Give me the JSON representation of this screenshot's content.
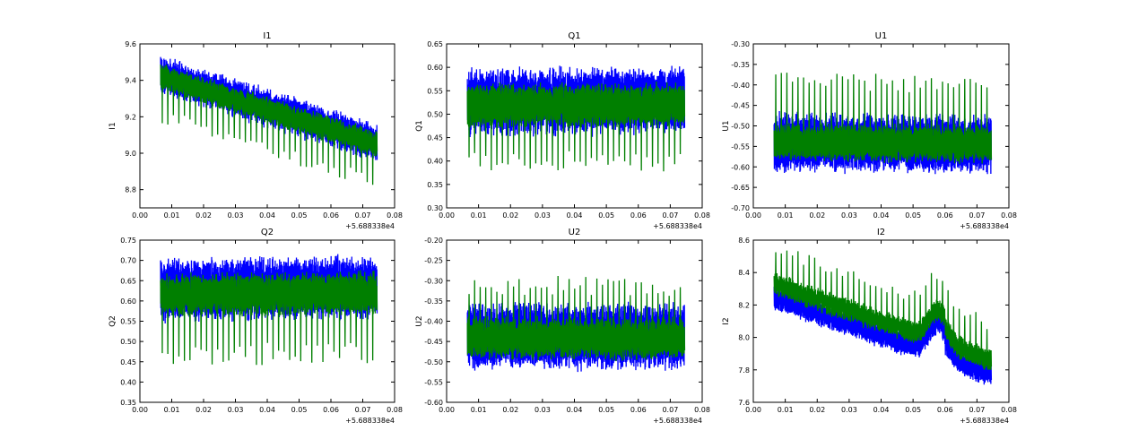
{
  "chart_data": [
    {
      "type": "line",
      "title": "I1",
      "xlabel": "",
      "ylabel": "I1",
      "x_offset_label": "+5.688338e4",
      "xlim": [
        0.0,
        0.08
      ],
      "ylim": [
        8.7,
        9.6
      ],
      "xticks": [
        "0.00",
        "0.01",
        "0.02",
        "0.03",
        "0.04",
        "0.05",
        "0.06",
        "0.07",
        "0.08"
      ],
      "yticks": [
        "8.8",
        "9.0",
        "9.2",
        "9.4",
        "9.6"
      ],
      "x_range": [
        0.0065,
        0.0745
      ],
      "series": [
        {
          "name": "blue",
          "color": "#0000ff",
          "center_start": 9.43,
          "center_end": 9.06,
          "halfwidth": 0.09,
          "noise": 0.025,
          "spike_dir": 0,
          "spike_mag": 0
        },
        {
          "name": "green",
          "color": "#007f00",
          "center_start": 9.42,
          "center_end": 9.05,
          "halfwidth": 0.06,
          "noise": 0.02,
          "spike_dir": -1,
          "spike_mag": 0.23
        }
      ]
    },
    {
      "type": "line",
      "title": "Q1",
      "xlabel": "",
      "ylabel": "Q1",
      "x_offset_label": "+5.688338e4",
      "xlim": [
        0.0,
        0.08
      ],
      "ylim": [
        0.3,
        0.65
      ],
      "xticks": [
        "0.00",
        "0.01",
        "0.02",
        "0.03",
        "0.04",
        "0.05",
        "0.06",
        "0.07",
        "0.08"
      ],
      "yticks": [
        "0.30",
        "0.35",
        "0.40",
        "0.45",
        "0.50",
        "0.55",
        "0.60",
        "0.65"
      ],
      "x_range": [
        0.0065,
        0.0745
      ],
      "series": [
        {
          "name": "blue",
          "color": "#0000ff",
          "center_start": 0.525,
          "center_end": 0.53,
          "halfwidth": 0.065,
          "noise": 0.012,
          "spike_dir": 0,
          "spike_mag": 0
        },
        {
          "name": "green",
          "color": "#007f00",
          "center_start": 0.52,
          "center_end": 0.52,
          "halfwidth": 0.04,
          "noise": 0.01,
          "spike_dir": -1,
          "spike_mag": 0.13
        }
      ]
    },
    {
      "type": "line",
      "title": "U1",
      "xlabel": "",
      "ylabel": "U1",
      "x_offset_label": "+5.688338e4",
      "xlim": [
        0.0,
        0.08
      ],
      "ylim": [
        -0.7,
        -0.3
      ],
      "xticks": [
        "0.00",
        "0.01",
        "0.02",
        "0.03",
        "0.04",
        "0.05",
        "0.06",
        "0.07",
        "0.08"
      ],
      "yticks": [
        "-0.70",
        "-0.65",
        "-0.60",
        "-0.55",
        "-0.50",
        "-0.45",
        "-0.40",
        "-0.35",
        "-0.30"
      ],
      "x_range": [
        0.0065,
        0.0745
      ],
      "series": [
        {
          "name": "blue",
          "color": "#0000ff",
          "center_start": -0.54,
          "center_end": -0.545,
          "halfwidth": 0.065,
          "noise": 0.012,
          "spike_dir": 0,
          "spike_mag": 0
        },
        {
          "name": "green",
          "color": "#007f00",
          "center_start": -0.54,
          "center_end": -0.545,
          "halfwidth": 0.04,
          "noise": 0.01,
          "spike_dir": 1,
          "spike_mag": 0.16
        }
      ]
    },
    {
      "type": "line",
      "title": "Q2",
      "xlabel": "",
      "ylabel": "Q2",
      "x_offset_label": "+5.688338e4",
      "xlim": [
        0.0,
        0.08
      ],
      "ylim": [
        0.35,
        0.75
      ],
      "xticks": [
        "0.00",
        "0.01",
        "0.02",
        "0.03",
        "0.04",
        "0.05",
        "0.06",
        "0.07",
        "0.08"
      ],
      "yticks": [
        "0.35",
        "0.40",
        "0.45",
        "0.50",
        "0.55",
        "0.60",
        "0.65",
        "0.70",
        "0.75"
      ],
      "x_range": [
        0.0065,
        0.0745
      ],
      "series": [
        {
          "name": "blue",
          "color": "#0000ff",
          "center_start": 0.625,
          "center_end": 0.635,
          "halfwidth": 0.07,
          "noise": 0.014,
          "spike_dir": 0,
          "spike_mag": 0
        },
        {
          "name": "green",
          "color": "#007f00",
          "center_start": 0.615,
          "center_end": 0.62,
          "halfwidth": 0.045,
          "noise": 0.012,
          "spike_dir": -1,
          "spike_mag": 0.16
        }
      ]
    },
    {
      "type": "line",
      "title": "U2",
      "xlabel": "",
      "ylabel": "U2",
      "x_offset_label": "+5.688338e4",
      "xlim": [
        0.0,
        0.08
      ],
      "ylim": [
        -0.6,
        -0.2
      ],
      "xticks": [
        "0.00",
        "0.01",
        "0.02",
        "0.03",
        "0.04",
        "0.05",
        "0.06",
        "0.07",
        "0.08"
      ],
      "yticks": [
        "-0.60",
        "-0.55",
        "-0.50",
        "-0.45",
        "-0.40",
        "-0.35",
        "-0.30",
        "-0.25",
        "-0.20"
      ],
      "x_range": [
        0.0065,
        0.0745
      ],
      "series": [
        {
          "name": "blue",
          "color": "#0000ff",
          "center_start": -0.435,
          "center_end": -0.44,
          "halfwidth": 0.075,
          "noise": 0.014,
          "spike_dir": 0,
          "spike_mag": 0
        },
        {
          "name": "green",
          "color": "#007f00",
          "center_start": -0.44,
          "center_end": -0.445,
          "halfwidth": 0.045,
          "noise": 0.012,
          "spike_dir": 1,
          "spike_mag": 0.14
        }
      ]
    },
    {
      "type": "line",
      "title": "I2",
      "xlabel": "",
      "ylabel": "I2",
      "x_offset_label": "+5.688338e4",
      "xlim": [
        0.0,
        0.08
      ],
      "ylim": [
        7.6,
        8.6
      ],
      "xticks": [
        "0.00",
        "0.01",
        "0.02",
        "0.03",
        "0.04",
        "0.05",
        "0.06",
        "0.07",
        "0.08"
      ],
      "yticks": [
        "7.6",
        "7.8",
        "8.0",
        "8.2",
        "8.4",
        "8.6"
      ],
      "x_range": [
        0.0065,
        0.0745
      ],
      "bump": {
        "x": 0.058,
        "height": 0.2,
        "width": 0.003
      },
      "series": [
        {
          "name": "blue",
          "color": "#0000ff",
          "center_start": 8.25,
          "center_end": 7.78,
          "halfwidth": 0.07,
          "noise": 0.02,
          "spike_dir": 0,
          "spike_mag": 0
        },
        {
          "name": "green",
          "color": "#007f00",
          "center_start": 8.33,
          "center_end": 7.86,
          "halfwidth": 0.06,
          "noise": 0.02,
          "spike_dir": 1,
          "spike_mag": 0.24
        }
      ]
    }
  ]
}
